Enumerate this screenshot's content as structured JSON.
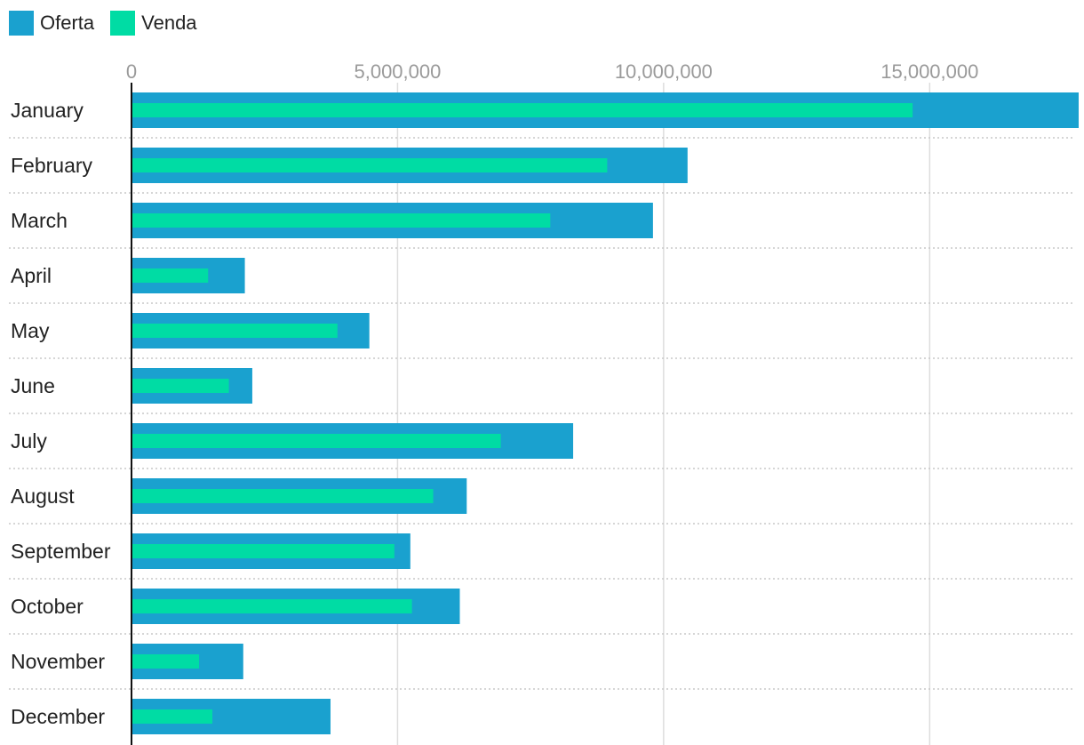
{
  "chart_data": {
    "type": "bar",
    "orientation": "horizontal",
    "categories": [
      "January",
      "February",
      "March",
      "April",
      "May",
      "June",
      "July",
      "August",
      "September",
      "October",
      "November",
      "December"
    ],
    "series": [
      {
        "name": "Oferta",
        "color": "#1aa1cf",
        "values": [
          17800000,
          10450000,
          9800000,
          2130000,
          4470000,
          2270000,
          8300000,
          6300000,
          5240000,
          6170000,
          2100000,
          3740000
        ]
      },
      {
        "name": "Venda",
        "color": "#00dca4",
        "values": [
          14680000,
          8940000,
          7870000,
          1440000,
          3870000,
          1830000,
          6940000,
          5670000,
          4940000,
          5270000,
          1270000,
          1520000
        ]
      }
    ],
    "xlim": [
      0,
      17700000
    ],
    "xticks": [
      0,
      5000000,
      10000000,
      15000000
    ],
    "xtick_labels": [
      "0",
      "5,000,000",
      "10,000,000",
      "15,000,000"
    ],
    "legend_position": "top-left",
    "grid": true
  }
}
